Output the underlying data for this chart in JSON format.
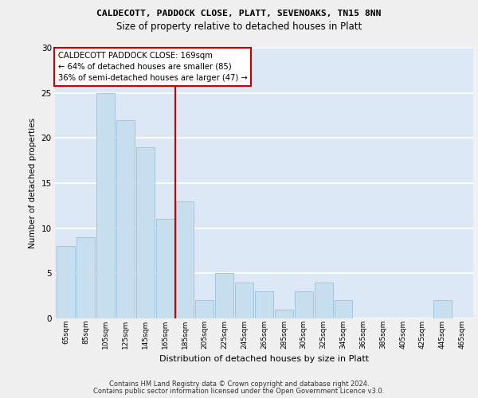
{
  "title1": "CALDECOTT, PADDOCK CLOSE, PLATT, SEVENOAKS, TN15 8NN",
  "title2": "Size of property relative to detached houses in Platt",
  "xlabel": "Distribution of detached houses by size in Platt",
  "ylabel": "Number of detached properties",
  "categories": [
    "65sqm",
    "85sqm",
    "105sqm",
    "125sqm",
    "145sqm",
    "165sqm",
    "185sqm",
    "205sqm",
    "225sqm",
    "245sqm",
    "265sqm",
    "285sqm",
    "305sqm",
    "325sqm",
    "345sqm",
    "365sqm",
    "385sqm",
    "405sqm",
    "425sqm",
    "445sqm",
    "465sqm"
  ],
  "values": [
    8,
    9,
    25,
    22,
    19,
    11,
    13,
    2,
    5,
    4,
    3,
    1,
    3,
    4,
    2,
    0,
    0,
    0,
    0,
    2,
    0
  ],
  "bar_color": "#c8dff0",
  "bar_edgecolor": "#9dbfda",
  "vline_x": 5.5,
  "vline_color": "#cc0000",
  "annotation_text": "CALDECOTT PADDOCK CLOSE: 169sqm\n← 64% of detached houses are smaller (85)\n36% of semi-detached houses are larger (47) →",
  "annotation_box_color": "#ffffff",
  "annotation_box_edgecolor": "#cc0000",
  "ylim": [
    0,
    30
  ],
  "yticks": [
    0,
    5,
    10,
    15,
    20,
    25,
    30
  ],
  "bg_color": "#dce8f5",
  "grid_color": "#ffffff",
  "fig_color": "#f0f0f0",
  "footer1": "Contains HM Land Registry data © Crown copyright and database right 2024.",
  "footer2": "Contains public sector information licensed under the Open Government Licence v3.0."
}
